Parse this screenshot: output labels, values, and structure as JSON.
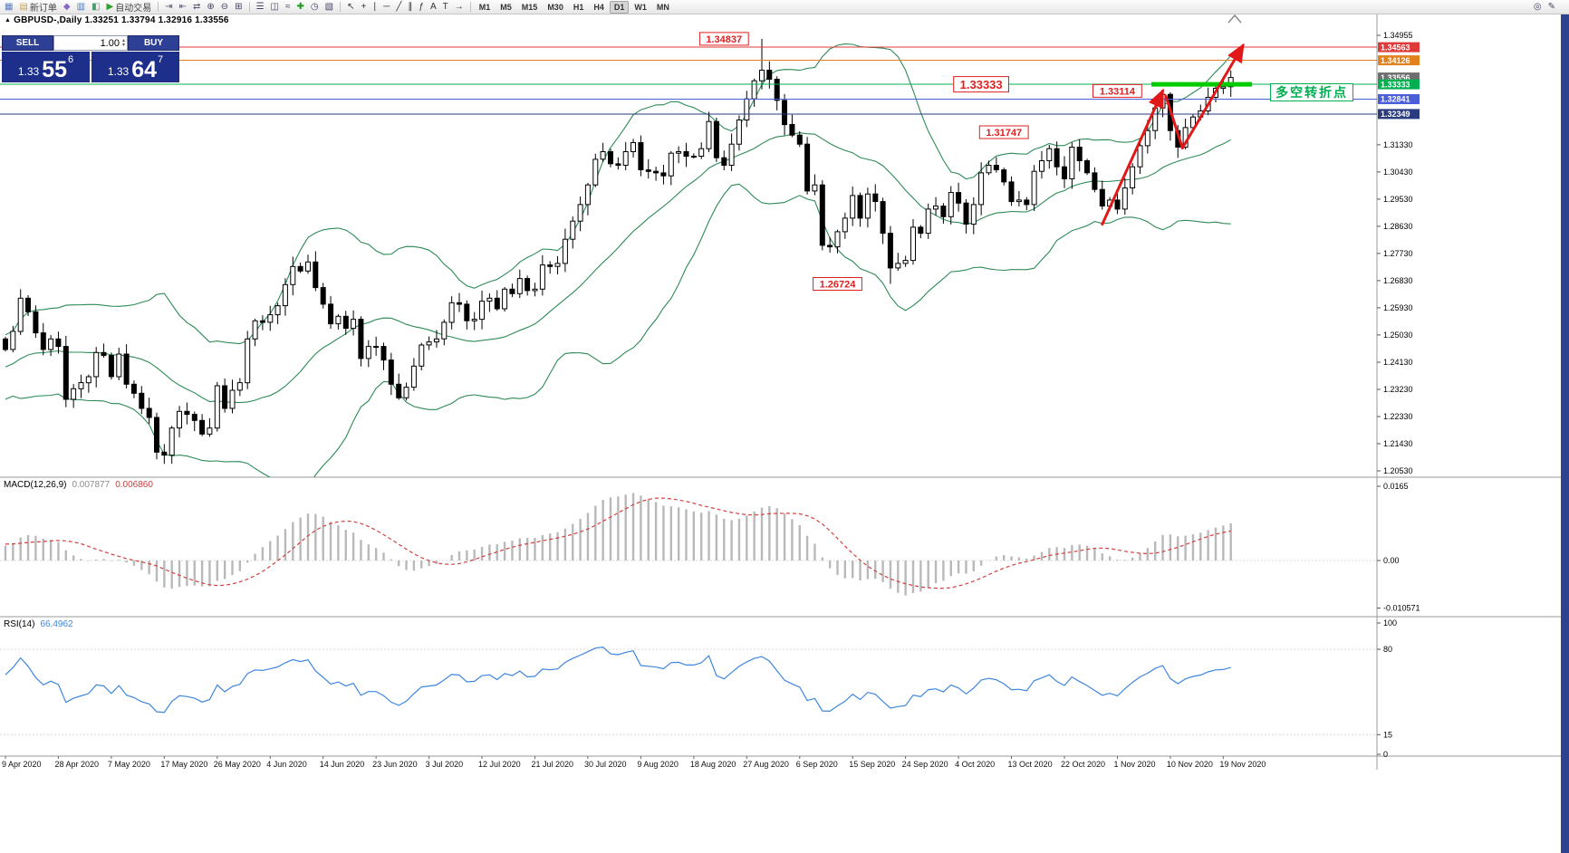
{
  "window": {
    "right_strip_color": "#2e4390"
  },
  "chart_title": "GBPUSD-,Daily 1.33251 1.33794 1.32916 1.33556",
  "title_icon": "▲",
  "toolbar": {
    "groups": [
      [
        {
          "name": "chart-window-icon",
          "glyph": "▦",
          "color": "#5a7abf"
        },
        {
          "name": "new-order-button",
          "glyph": "▤",
          "color": "#caa35a",
          "label": "新订单"
        },
        {
          "name": "expert-advisors-icon",
          "glyph": "◆",
          "color": "#8a6ac0"
        },
        {
          "name": "market-watch-icon",
          "glyph": "▥",
          "color": "#4a7ac0"
        },
        {
          "name": "navigator-icon",
          "glyph": "◧",
          "color": "#4a9a6a"
        },
        {
          "name": "autotrade-button",
          "glyph": "▶",
          "color": "#2aa22a",
          "label": "自动交易"
        }
      ],
      [
        {
          "name": "scroll-to-end-icon",
          "glyph": "⇥",
          "color": "#555577"
        },
        {
          "name": "auto-scroll-icon",
          "glyph": "⇤",
          "color": "#555577"
        },
        {
          "name": "chart-shift-icon",
          "glyph": "⇄",
          "color": "#555577"
        },
        {
          "name": "zoom-in-icon",
          "glyph": "⊕",
          "color": "#444466"
        },
        {
          "name": "zoom-out-icon",
          "glyph": "⊖",
          "color": "#444466"
        },
        {
          "name": "tile-windows-icon",
          "glyph": "⊞",
          "color": "#444466"
        }
      ],
      [
        {
          "name": "bar-chart-icon",
          "glyph": "☰",
          "color": "#444466"
        },
        {
          "name": "candlestick-icon",
          "glyph": "◫",
          "color": "#444466"
        },
        {
          "name": "line-chart-icon",
          "glyph": "≈",
          "color": "#444466"
        },
        {
          "name": "indicators-icon",
          "glyph": "✚",
          "color": "#1a9a1a"
        },
        {
          "name": "periods-icon",
          "glyph": "◷",
          "color": "#444466"
        },
        {
          "name": "templates-icon",
          "glyph": "▧",
          "color": "#444466"
        }
      ],
      [
        {
          "name": "cursor-icon",
          "glyph": "↖",
          "color": "#333333"
        },
        {
          "name": "crosshair-icon",
          "glyph": "+",
          "color": "#333333"
        },
        {
          "name": "vertical-line-icon",
          "glyph": "∣",
          "color": "#333333"
        },
        {
          "name": "horizontal-line-icon",
          "glyph": "─",
          "color": "#333333"
        },
        {
          "name": "trendline-icon",
          "glyph": "╱",
          "color": "#333333"
        },
        {
          "name": "channel-icon",
          "glyph": "∥",
          "color": "#333333"
        },
        {
          "name": "fibonacci-icon",
          "glyph": "ƒ",
          "color": "#333333"
        },
        {
          "name": "text-icon",
          "glyph": "A",
          "color": "#333333"
        },
        {
          "name": "label-icon",
          "glyph": "T",
          "color": "#333333"
        },
        {
          "name": "arrows-tool-icon",
          "glyph": "→",
          "color": "#333333"
        }
      ]
    ],
    "timeframes": [
      "M1",
      "M5",
      "M15",
      "M30",
      "H1",
      "H4",
      "D1",
      "W1",
      "MN"
    ],
    "active_timeframe": "D1",
    "right_icons": [
      {
        "name": "search-icon",
        "glyph": "◎",
        "color": "#444466"
      },
      {
        "name": "edit-icon",
        "glyph": "✎",
        "color": "#444466"
      }
    ]
  },
  "quote_panel": {
    "sell_label": "SELL",
    "buy_label": "BUY",
    "volume": "1.00",
    "spin_up": "▴",
    "spin_down": "▾",
    "sell_big": "1.33",
    "sell_main": "55",
    "sell_sup": "6",
    "buy_big": "1.33",
    "buy_main": "64",
    "buy_sup": "7",
    "button_color": "#2e3f96",
    "tile_color": "#1d2f8a"
  },
  "chart_data": {
    "type": "candlestick",
    "symbol": "GBPUSD-",
    "timeframe": "Daily",
    "ohlc": {
      "open": "1.33251",
      "high": "1.33794",
      "low": "1.32916",
      "close": "1.33556"
    },
    "y_scale": {
      "max": 1.34955,
      "min": 1.2053
    },
    "y_ticks": [
      "1.34955",
      "1.31330",
      "1.30430",
      "1.29530",
      "1.28630",
      "1.27730",
      "1.26830",
      "1.25930",
      "1.25030",
      "1.24130",
      "1.23230",
      "1.22330",
      "1.21430",
      "1.20530"
    ],
    "x_labels": [
      "9 Apr 2020",
      "28 Apr 2020",
      "7 May 2020",
      "17 May 2020",
      "26 May 2020",
      "4 Jun 2020",
      "14 Jun 2020",
      "23 Jun 2020",
      "3 Jul 2020",
      "12 Jul 2020",
      "21 Jul 2020",
      "30 Jul 2020",
      "9 Aug 2020",
      "18 Aug 2020",
      "27 Aug 2020",
      "6 Sep 2020",
      "15 Sep 2020",
      "24 Sep 2020",
      "4 Oct 2020",
      "13 Oct 2020",
      "22 Oct 2020",
      "1 Nov 2020",
      "10 Nov 2020",
      "19 Nov 2020"
    ],
    "label_every": 7,
    "closes": [
      1.2455,
      1.2515,
      1.2625,
      1.258,
      1.251,
      1.2455,
      1.249,
      1.2465,
      1.229,
      1.2325,
      1.2345,
      1.2365,
      1.2445,
      1.2435,
      1.2365,
      1.244,
      1.234,
      1.231,
      1.226,
      1.223,
      1.2115,
      1.2105,
      1.2195,
      1.225,
      1.224,
      1.222,
      1.2175,
      1.2195,
      1.2335,
      1.226,
      1.232,
      1.2345,
      1.249,
      1.255,
      1.2545,
      1.257,
      1.26,
      1.267,
      1.273,
      1.2715,
      1.2745,
      1.266,
      1.2605,
      1.254,
      1.2565,
      1.2525,
      1.2555,
      1.2425,
      1.2465,
      1.2465,
      1.242,
      1.234,
      1.2295,
      1.233,
      1.24,
      1.247,
      1.248,
      1.249,
      1.2545,
      1.261,
      1.2605,
      1.255,
      1.2555,
      1.2615,
      1.2625,
      1.259,
      1.2655,
      1.264,
      1.269,
      1.265,
      1.2655,
      1.2735,
      1.273,
      1.274,
      1.282,
      1.288,
      1.2935,
      1.3,
      1.3085,
      1.311,
      1.307,
      1.3065,
      1.311,
      1.314,
      1.305,
      1.3045,
      1.304,
      1.303,
      1.3105,
      1.311,
      1.3095,
      1.3095,
      1.312,
      1.321,
      1.309,
      1.3065,
      1.3135,
      1.3215,
      1.3285,
      1.3345,
      1.338,
      1.335,
      1.328,
      1.32,
      1.3165,
      1.3135,
      1.298,
      1.3,
      1.28,
      1.2795,
      1.2845,
      1.289,
      1.2965,
      1.289,
      1.297,
      1.2945,
      1.284,
      1.2725,
      1.274,
      1.275,
      1.286,
      1.284,
      1.292,
      1.293,
      1.2895,
      1.2975,
      1.294,
      1.287,
      1.2935,
      1.304,
      1.3065,
      1.305,
      1.301,
      1.2945,
      1.295,
      1.2935,
      1.3045,
      1.308,
      1.312,
      1.306,
      1.302,
      1.3125,
      1.308,
      1.304,
      1.2985,
      1.293,
      1.295,
      1.292,
      1.299,
      1.306,
      1.313,
      1.318,
      1.3255,
      1.33,
      1.318,
      1.3125,
      1.319,
      1.3225,
      1.3245,
      1.329,
      1.332,
      1.3325,
      1.33556
    ],
    "overrides": [
      {
        "i": 21,
        "low": 1.2076
      },
      {
        "i": 100,
        "high": 1.34837
      },
      {
        "i": 117,
        "low": 1.26724
      },
      {
        "i": 153,
        "high": 1.33114
      },
      {
        "i": 162,
        "open": 1.33251,
        "high": 1.33794,
        "low": 1.32916
      }
    ],
    "bollinger": {
      "period": 20,
      "deviation": 2,
      "color": "#2e8b57"
    },
    "hlines": [
      {
        "price": 1.34563,
        "text": "1.34563",
        "color": "#df3a3a"
      },
      {
        "price": 1.34126,
        "text": "1.34126",
        "color": "#e2821e"
      },
      {
        "price": 1.33333,
        "text": "1.33333",
        "color": "#00b050"
      },
      {
        "price": 1.32841,
        "text": "1.32841",
        "color": "#4a5fd8"
      },
      {
        "price": 1.32349,
        "text": "1.32349",
        "color": "#2a3b80"
      }
    ],
    "current_price": {
      "price": 1.33556,
      "text": "1.33556",
      "color": "#6e6e6e"
    },
    "support_bar": {
      "price": 1.33333,
      "i1": 151.5,
      "i2": 164.8,
      "color": "#00cc00",
      "width": 5
    },
    "annotations": [
      {
        "text": "1.34837",
        "i": 95,
        "price": 1.34837
      },
      {
        "text": "1.33333",
        "i": 129,
        "price": 1.33333,
        "big": true
      },
      {
        "text": "1.33114",
        "i": 147,
        "price": 1.33114
      },
      {
        "text": "1.31747",
        "i": 132,
        "price": 1.31747
      },
      {
        "text": "1.26724",
        "i": 110,
        "price": 1.26724
      }
    ],
    "annotation_color": "#e02020",
    "arrow_style": {
      "color": "#e01818",
      "width": 3
    },
    "arrows": [
      {
        "points": [
          [
            145,
            1.287
          ],
          [
            153,
            1.33114
          ]
        ]
      },
      {
        "points": [
          [
            153.4,
            1.3295
          ],
          [
            155.6,
            1.3122
          ],
          [
            163.6,
            1.3462
          ]
        ]
      }
    ],
    "cn_note": {
      "text": "多空转折点",
      "color": "#00b050"
    },
    "macd": {
      "label": "MACD(12,26,9)",
      "value_main": "0.007877",
      "value_signal": "0.006860",
      "fast": 12,
      "slow": 26,
      "signal": 9,
      "hist_color": "#b9b9b9",
      "signal_color": "#d34040",
      "scale_ticks": [
        "0.0165",
        "0.00",
        "-0.010571"
      ]
    },
    "rsi": {
      "label": "RSI(14)",
      "value": "66.4962",
      "period": 14,
      "color": "#3e86dd",
      "levels": [
        80,
        15
      ],
      "scale_ticks": [
        "100",
        "80",
        "15",
        "0"
      ]
    }
  }
}
